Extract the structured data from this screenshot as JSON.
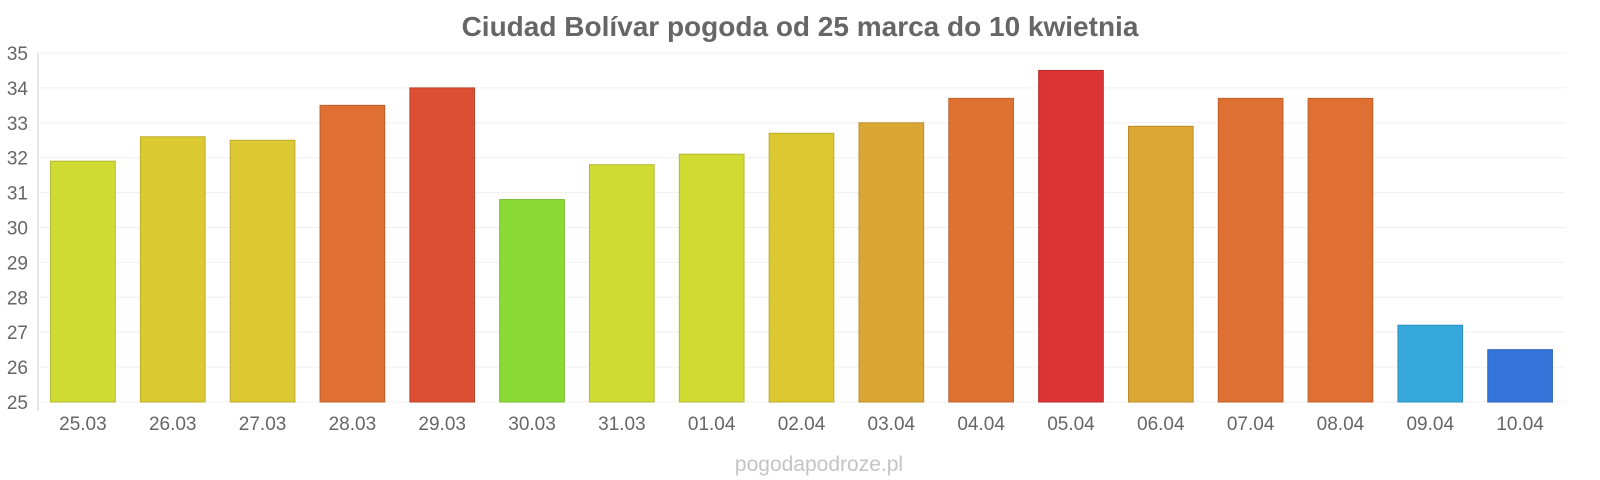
{
  "chart_data": {
    "type": "bar",
    "title": "Ciudad Bolívar pogoda od 25 marca do 10 kwietnia",
    "xlabel": "",
    "ylabel": "",
    "ylim": [
      25,
      35
    ],
    "yticks": [
      "25",
      "26",
      "27",
      "28",
      "29",
      "30",
      "31",
      "32",
      "33",
      "34",
      "35"
    ],
    "grid": true,
    "legend": "none",
    "categories": [
      "25.03",
      "26.03",
      "27.03",
      "28.03",
      "29.03",
      "30.03",
      "31.03",
      "01.04",
      "02.04",
      "03.04",
      "04.04",
      "05.04",
      "06.04",
      "07.04",
      "08.04",
      "09.04",
      "10.04"
    ],
    "values": [
      31.9,
      32.6,
      32.5,
      33.5,
      34.0,
      30.8,
      31.8,
      32.1,
      32.7,
      33.0,
      33.7,
      34.5,
      32.9,
      33.7,
      33.7,
      27.2,
      26.5
    ],
    "colors": [
      "#d0db34",
      "#dcca32",
      "#dcc832",
      "#df6f33",
      "#dc4f33",
      "#8adc35",
      "#d0db34",
      "#d2db34",
      "#dcc932",
      "#dba734",
      "#df7233",
      "#dc3434",
      "#dca734",
      "#df7033",
      "#df6f33",
      "#36a8dc",
      "#3575da"
    ]
  },
  "watermark": "pogodapodroze.pl"
}
